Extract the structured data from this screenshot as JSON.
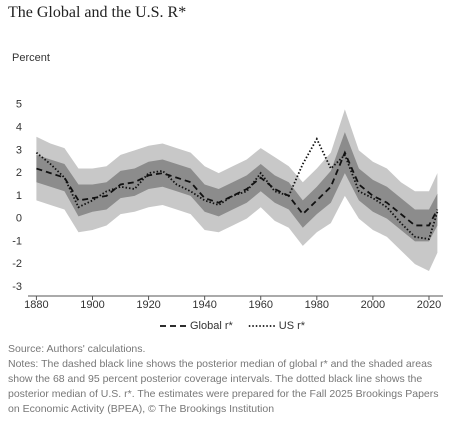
{
  "chart_data": {
    "type": "line",
    "title": "The Global and the U.S. R*",
    "y_label": "Percent",
    "x": [
      1880,
      1885,
      1890,
      1895,
      1900,
      1905,
      1910,
      1915,
      1920,
      1925,
      1930,
      1935,
      1940,
      1945,
      1950,
      1955,
      1960,
      1965,
      1970,
      1975,
      1980,
      1985,
      1990,
      1995,
      2000,
      2005,
      2010,
      2015,
      2020,
      2023
    ],
    "bands": [
      {
        "color": "#c8c8c8",
        "upper": [
          3.6,
          3.3,
          3.1,
          2.2,
          2.2,
          2.3,
          2.8,
          3.0,
          3.2,
          3.3,
          3.1,
          2.9,
          2.3,
          2.0,
          2.3,
          2.6,
          3.1,
          2.7,
          2.3,
          1.6,
          2.2,
          2.9,
          4.8,
          3.0,
          2.5,
          2.2,
          1.6,
          1.2,
          1.2,
          2.0
        ],
        "lower": [
          0.8,
          0.6,
          0.4,
          -0.6,
          -0.5,
          -0.3,
          0.2,
          0.3,
          0.5,
          0.6,
          0.4,
          0.2,
          -0.5,
          -0.6,
          -0.3,
          0.0,
          0.5,
          -0.1,
          -0.4,
          -1.2,
          -0.6,
          -0.2,
          1.0,
          0.0,
          -0.5,
          -0.8,
          -1.4,
          -2.0,
          -2.3,
          -1.5
        ]
      },
      {
        "color": "#8c8c8c",
        "upper": [
          2.8,
          2.6,
          2.4,
          1.5,
          1.5,
          1.6,
          2.1,
          2.2,
          2.5,
          2.6,
          2.4,
          2.2,
          1.5,
          1.3,
          1.6,
          1.9,
          2.4,
          1.9,
          1.6,
          0.8,
          1.4,
          2.1,
          3.8,
          2.2,
          1.7,
          1.4,
          0.9,
          0.4,
          0.4,
          1.1
        ],
        "lower": [
          1.6,
          1.4,
          1.2,
          0.1,
          0.3,
          0.4,
          0.9,
          1.0,
          1.3,
          1.4,
          1.2,
          1.0,
          0.3,
          0.1,
          0.4,
          0.7,
          1.2,
          0.7,
          0.4,
          -0.4,
          0.2,
          0.7,
          2.0,
          0.8,
          0.3,
          0.0,
          -0.5,
          -1.0,
          -1.0,
          -0.3
        ]
      }
    ],
    "series": [
      {
        "name": "Global r*",
        "color": "#111111",
        "dash": "6,4",
        "values": [
          2.2,
          2.0,
          1.8,
          0.8,
          0.9,
          1.0,
          1.5,
          1.6,
          1.9,
          2.0,
          1.8,
          1.6,
          0.9,
          0.7,
          1.0,
          1.3,
          1.8,
          1.3,
          1.0,
          0.2,
          0.8,
          1.4,
          2.9,
          1.5,
          1.0,
          0.7,
          0.2,
          -0.3,
          -0.3,
          0.4
        ]
      },
      {
        "name": "US r*",
        "color": "#111111",
        "dash": "1.5,2",
        "values": [
          2.9,
          2.4,
          1.8,
          0.5,
          0.8,
          1.2,
          1.4,
          1.3,
          2.0,
          2.1,
          1.5,
          1.2,
          0.8,
          0.6,
          1.0,
          1.2,
          2.0,
          1.2,
          1.0,
          2.4,
          3.5,
          2.2,
          2.8,
          1.2,
          0.9,
          0.5,
          -0.2,
          -0.8,
          -0.9,
          0.3
        ]
      }
    ],
    "xlim": [
      1877,
      2025
    ],
    "xticks": [
      1880,
      1900,
      1920,
      1940,
      1960,
      1980,
      2000,
      2020
    ],
    "ylim": [
      -3.4,
      5.3
    ],
    "yticks": [
      5,
      4,
      3,
      2,
      1,
      0,
      -1,
      -2,
      -3
    ],
    "grid": false,
    "legend": "bottom",
    "source": "Source: Authors' calculations.",
    "notes": "Notes: The dashed black line shows the posterior median of global r* and the shaded areas show the 68 and 95 percent posterior coverage intervals. The dotted black line shows the posterior median of U.S. r*. The estimates were prepared for the Fall 2025 Brookings Papers on Economic Activity (BPEA), © The Brookings Institution"
  }
}
